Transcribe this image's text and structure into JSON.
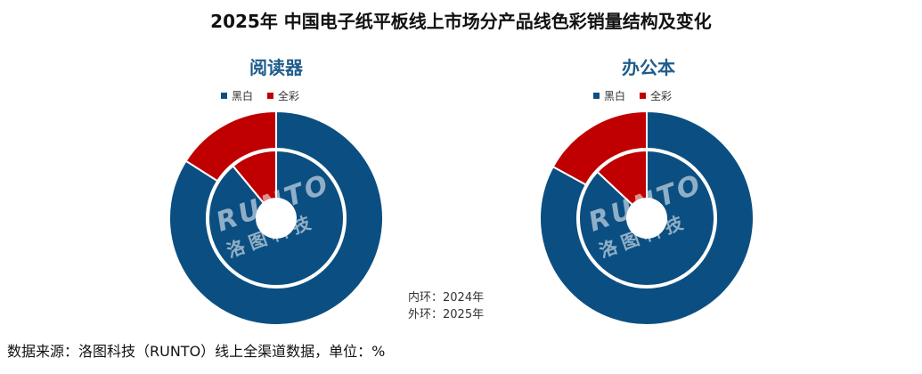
{
  "title": "2025年 中国电子纸平板线上市场分产品线色彩销量结构及变化",
  "legend": {
    "mono": "黑白",
    "color": "全彩"
  },
  "colors": {
    "mono": "#0b4f82",
    "color": "#c00000",
    "ring_stroke": "#ffffff"
  },
  "note": {
    "inner": "内环：2024年",
    "outer": "外环：2025年"
  },
  "source": "数据来源：洛图科技（RUNTO）线上全渠道数据，单位：%",
  "watermark": {
    "latin": "RUNTO",
    "cn": "洛图科技"
  },
  "chart_data": [
    {
      "type": "pie",
      "subtype": "nested-donut",
      "title": "阅读器",
      "categories": [
        "黑白",
        "全彩"
      ],
      "series": [
        {
          "ring": "inner",
          "year": "2024年",
          "values": [
            89,
            11
          ]
        },
        {
          "ring": "outer",
          "year": "2025年",
          "values": [
            84,
            16
          ]
        }
      ]
    },
    {
      "type": "pie",
      "subtype": "nested-donut",
      "title": "办公本",
      "categories": [
        "黑白",
        "全彩"
      ],
      "series": [
        {
          "ring": "inner",
          "year": "2024年",
          "values": [
            87,
            13
          ]
        },
        {
          "ring": "outer",
          "year": "2025年",
          "values": [
            83,
            17
          ]
        }
      ]
    }
  ]
}
